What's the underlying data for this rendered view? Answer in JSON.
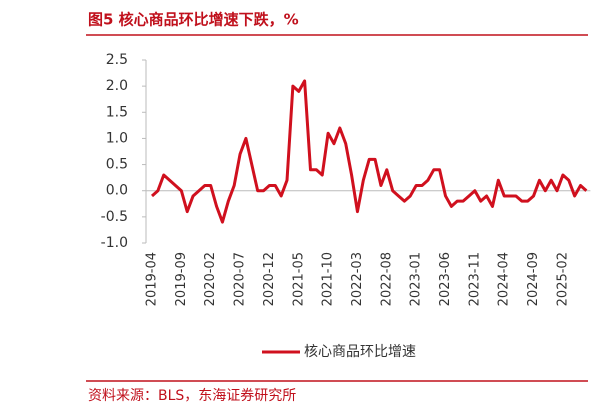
{
  "chart_data": {
    "type": "line",
    "title": "图5  核心商品环比增速下跌，%",
    "source": "资料来源：BLS，东海证券研究所",
    "categories": [
      "2019-04",
      null,
      null,
      null,
      null,
      "2019-09",
      null,
      null,
      null,
      null,
      "2020-02",
      null,
      null,
      null,
      null,
      "2020-07",
      null,
      null,
      null,
      null,
      "2020-12",
      null,
      null,
      null,
      null,
      "2021-05",
      null,
      null,
      null,
      null,
      "2021-10",
      null,
      null,
      null,
      null,
      "2022-03",
      null,
      null,
      null,
      null,
      "2022-08",
      null,
      null,
      null,
      null,
      "2023-01",
      null,
      null,
      null,
      null,
      "2023-06",
      null,
      null,
      null,
      null,
      "2023-11",
      null,
      null,
      null,
      null,
      "2024-04",
      null,
      null,
      null,
      null,
      "2024-09",
      null,
      null,
      null,
      null,
      "2025-02",
      null,
      null,
      null,
      null
    ],
    "series": [
      {
        "name": "核心商品环比增速",
        "color": "#d0101e",
        "values": [
          -0.1,
          0,
          0.3,
          0.2,
          0.1,
          0,
          -0.4,
          -0.1,
          0,
          0.1,
          0.1,
          -0.3,
          -0.6,
          -0.2,
          0.1,
          0.7,
          1.0,
          0.5,
          0,
          0,
          0.1,
          0.1,
          -0.1,
          0.2,
          2.0,
          1.9,
          2.1,
          0.4,
          0.4,
          0.3,
          1.1,
          0.9,
          1.2,
          0.9,
          0.3,
          -0.4,
          0.2,
          0.6,
          0.6,
          0.1,
          0.4,
          0,
          -0.1,
          -0.2,
          -0.1,
          0.1,
          0.1,
          0.2,
          0.4,
          0.4,
          -0.1,
          -0.3,
          -0.2,
          -0.2,
          -0.1,
          0,
          -0.2,
          -0.1,
          -0.3,
          0.2,
          -0.1,
          -0.1,
          -0.1,
          -0.2,
          -0.2,
          -0.1,
          0.2,
          0,
          0.2,
          0,
          0.3,
          0.2,
          -0.1,
          0.1,
          0
        ]
      }
    ],
    "ylim": [
      -1.0,
      2.5
    ],
    "yticks": [
      {
        "value": -1.0,
        "label": "-1.0"
      },
      {
        "value": -0.5,
        "label": "-0.5"
      },
      {
        "value": 0,
        "label": "0.0"
      },
      {
        "value": 0.5,
        "label": "0.5"
      },
      {
        "value": 1.0,
        "label": "1.0"
      },
      {
        "value": 1.5,
        "label": "1.5"
      },
      {
        "value": 2.0,
        "label": "2.0"
      },
      {
        "value": 2.5,
        "label": "2.5"
      }
    ],
    "grid": false
  }
}
